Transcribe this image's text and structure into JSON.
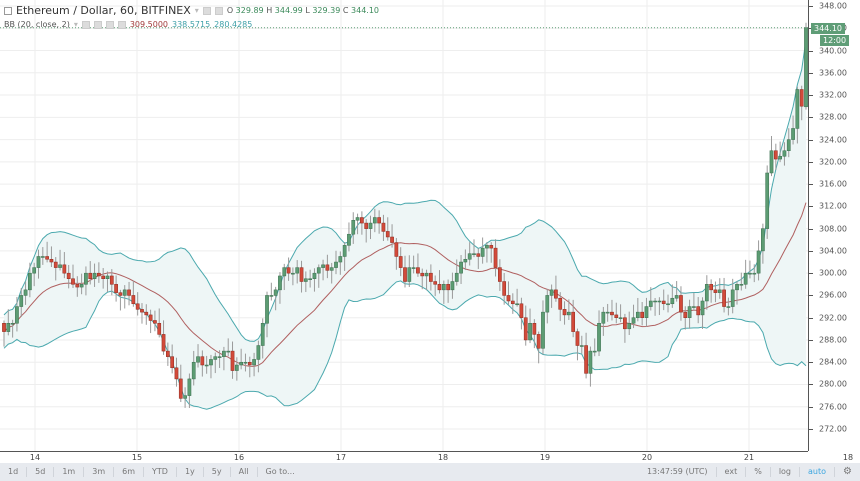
{
  "legend": {
    "symbol_title": "Ethereum / Dollar, 60, BITFINEX",
    "ohlc": {
      "o_label": "O",
      "o": "329.89",
      "h_label": "H",
      "h": "344.99",
      "l_label": "L",
      "l": "329.39",
      "c_label": "C",
      "c": "344.10"
    },
    "indicator": "BB (20, close, 2)",
    "bb_basis": "309.5000",
    "bb_upper": "338.5715",
    "bb_lower": "280.4285"
  },
  "price_axis": {
    "ticks": [
      "348.00",
      "344.00",
      "340.00",
      "336.00",
      "332.00",
      "328.00",
      "324.00",
      "320.00",
      "316.00",
      "312.00",
      "308.00",
      "304.00",
      "300.00",
      "296.00",
      "292.00",
      "288.00",
      "284.00",
      "280.00",
      "276.00",
      "272.00"
    ],
    "current_price": "344.10",
    "countdown": "12:00"
  },
  "time_axis": {
    "labels": [
      "14",
      "15",
      "16",
      "17",
      "18",
      "19",
      "20",
      "21",
      "18"
    ]
  },
  "bottom_bar": {
    "ranges": [
      "1d",
      "5d",
      "1m",
      "3m",
      "6m",
      "YTD",
      "1y",
      "5y",
      "All",
      "Go to..."
    ],
    "clock": "13:47:59 (UTC)",
    "ext": "ext",
    "percent": "%",
    "log": "log",
    "auto": "auto"
  },
  "colors": {
    "up": "#5c9c73",
    "down": "#d24a3a",
    "bb_band": "#4ba9ae",
    "bb_basis": "#b06060",
    "bb_fill": "#eef6f6",
    "badge": "#5f9d77"
  },
  "chart_data": {
    "type": "candlestick",
    "title": "Ethereum / Dollar, 60, BITFINEX",
    "interval": "60",
    "xlabel": "",
    "ylabel": "",
    "ylim": [
      270,
      349
    ],
    "x_ticks": [
      "14",
      "15",
      "16",
      "17",
      "18",
      "19",
      "20",
      "21"
    ],
    "grid": true,
    "indicators": [
      {
        "name": "BB (20, close, 2)",
        "basis": 309.5,
        "upper": 338.5715,
        "lower": 280.4285
      }
    ],
    "last": {
      "open": 329.89,
      "high": 344.99,
      "low": 329.39,
      "close": 344.1
    },
    "closes_approx": [
      289.5,
      291,
      291,
      294,
      296,
      297,
      300,
      301,
      303,
      303,
      302.5,
      302,
      301,
      301.5,
      300,
      299,
      298,
      297.5,
      298,
      300,
      299,
      300,
      299.5,
      299,
      299.5,
      298,
      296.5,
      296,
      297,
      296,
      294.5,
      293.5,
      293,
      292.5,
      291.5,
      291,
      289,
      286,
      285,
      283,
      281,
      277.5,
      278,
      281,
      284,
      285,
      283.5,
      283.5,
      284.5,
      285,
      285,
      286,
      286,
      282.5,
      283.5,
      284,
      284,
      283.5,
      284.5,
      287,
      291,
      296,
      296,
      297,
      299.5,
      301,
      300,
      300,
      301,
      298.5,
      299,
      299,
      300,
      301,
      301.5,
      300.5,
      301,
      302,
      303,
      305,
      307,
      309.5,
      310,
      309,
      308,
      309,
      310,
      309,
      307.5,
      306.5,
      305.5,
      303,
      301,
      298.5,
      301,
      301,
      300,
      299.5,
      300,
      298.5,
      298,
      297,
      298,
      297,
      298.5,
      300,
      302,
      302.5,
      303.5,
      303.5,
      303,
      304.5,
      305,
      304.5,
      301,
      298.5,
      296,
      295,
      294.5,
      294.5,
      292,
      288,
      291,
      289,
      286.5,
      293,
      296,
      297,
      295.5,
      293.5,
      292.5,
      293,
      289.5,
      287,
      287,
      282,
      286,
      286,
      291,
      293,
      293,
      292.5,
      292,
      292,
      290,
      291,
      292,
      293,
      292,
      294,
      295,
      295,
      295,
      294.5,
      294.5,
      295.5,
      296,
      293,
      292,
      294,
      294,
      292.5,
      295,
      298,
      297,
      296.5,
      297,
      294,
      294,
      297,
      298,
      298,
      300,
      300,
      300,
      304,
      308,
      318,
      322,
      320.5,
      321,
      322,
      324,
      326,
      333,
      330,
      344.1
    ]
  }
}
